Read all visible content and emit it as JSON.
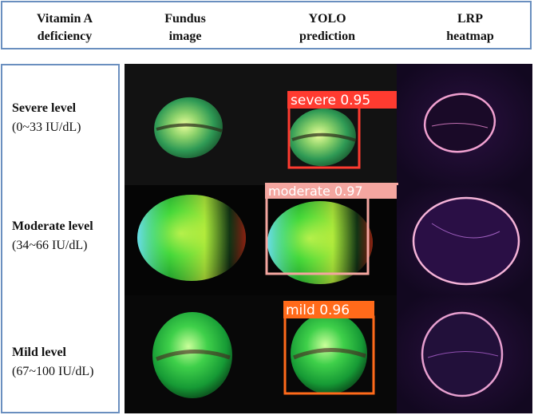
{
  "header": {
    "col1": [
      "Vitamin A",
      "deficiency"
    ],
    "col2": [
      "Fundus",
      "image"
    ],
    "col3": [
      "YOLO",
      "prediction"
    ],
    "col4": [
      "LRP",
      "heatmap"
    ]
  },
  "rows": [
    {
      "title": "Severe level",
      "range": "(0~33 IU/dL)",
      "prediction_label": "severe 0.95",
      "box_color": "#ff3b30"
    },
    {
      "title": "Moderate level",
      "range": "(34~66 IU/dL)",
      "prediction_label": "moderate 0.97",
      "box_color": "#f4a6a0"
    },
    {
      "title": "Mild level",
      "range": "(67~100 IU/dL)",
      "prediction_label": "mild 0.96",
      "box_color": "#ff6a1a"
    }
  ]
}
